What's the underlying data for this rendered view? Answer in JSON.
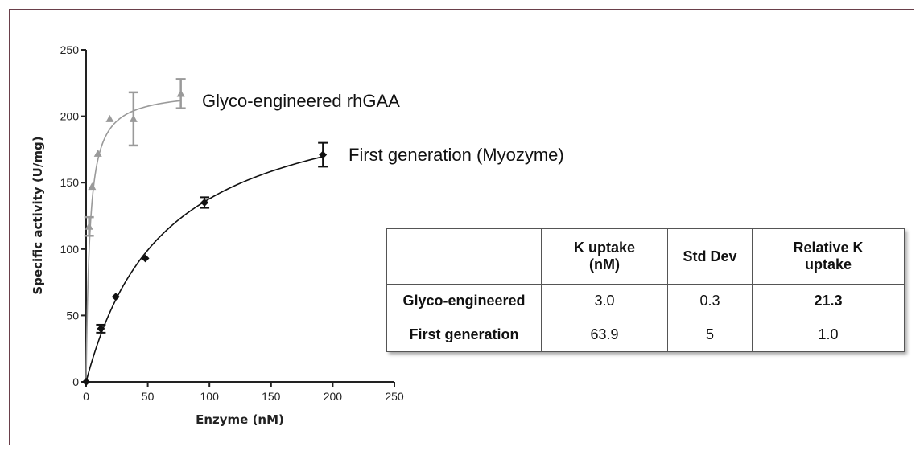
{
  "chart_data": {
    "type": "scatter",
    "title": "",
    "xlabel": "Enzyme (nM)",
    "ylabel": "Specific activity (U/mg)",
    "xlim": [
      0,
      250
    ],
    "ylim": [
      0,
      250
    ],
    "x_ticks": [
      "0",
      "50",
      "100",
      "150",
      "200",
      "250"
    ],
    "y_ticks": [
      "0",
      "50",
      "100",
      "150",
      "200",
      "250"
    ],
    "grid": false,
    "series": [
      {
        "name": "Glyco-engineered rhGAA",
        "color": "#9a9a9a",
        "marker": "triangle",
        "x": [
          0,
          2.4,
          4.8,
          9.6,
          19.2,
          38.4,
          76.8
        ],
        "y": [
          0,
          117,
          147,
          172,
          198,
          198,
          217
        ],
        "error": [
          0,
          7,
          0,
          0,
          0,
          20,
          11
        ],
        "fit": {
          "model": "michaelis-menten",
          "vmax": 220,
          "k": 3.0
        }
      },
      {
        "name": "First generation (Myozyme)",
        "color": "#111111",
        "marker": "diamond",
        "x": [
          0,
          12,
          24,
          48,
          96,
          192
        ],
        "y": [
          0,
          40,
          64,
          93,
          135,
          171
        ],
        "error": [
          0,
          3,
          0,
          0,
          4,
          9
        ],
        "fit": {
          "model": "michaelis-menten",
          "vmax": 226,
          "k": 63.9
        }
      }
    ]
  },
  "table": {
    "headers": [
      "",
      "K uptake (nM)",
      "Std Dev",
      "Relative K uptake"
    ],
    "rows": [
      {
        "label": "Glyco-engineered",
        "k_uptake": "3.0",
        "std_dev": "0.3",
        "relative": "21.3"
      },
      {
        "label": "First generation",
        "k_uptake": "63.9",
        "std_dev": "5",
        "relative": "1.0"
      }
    ]
  }
}
